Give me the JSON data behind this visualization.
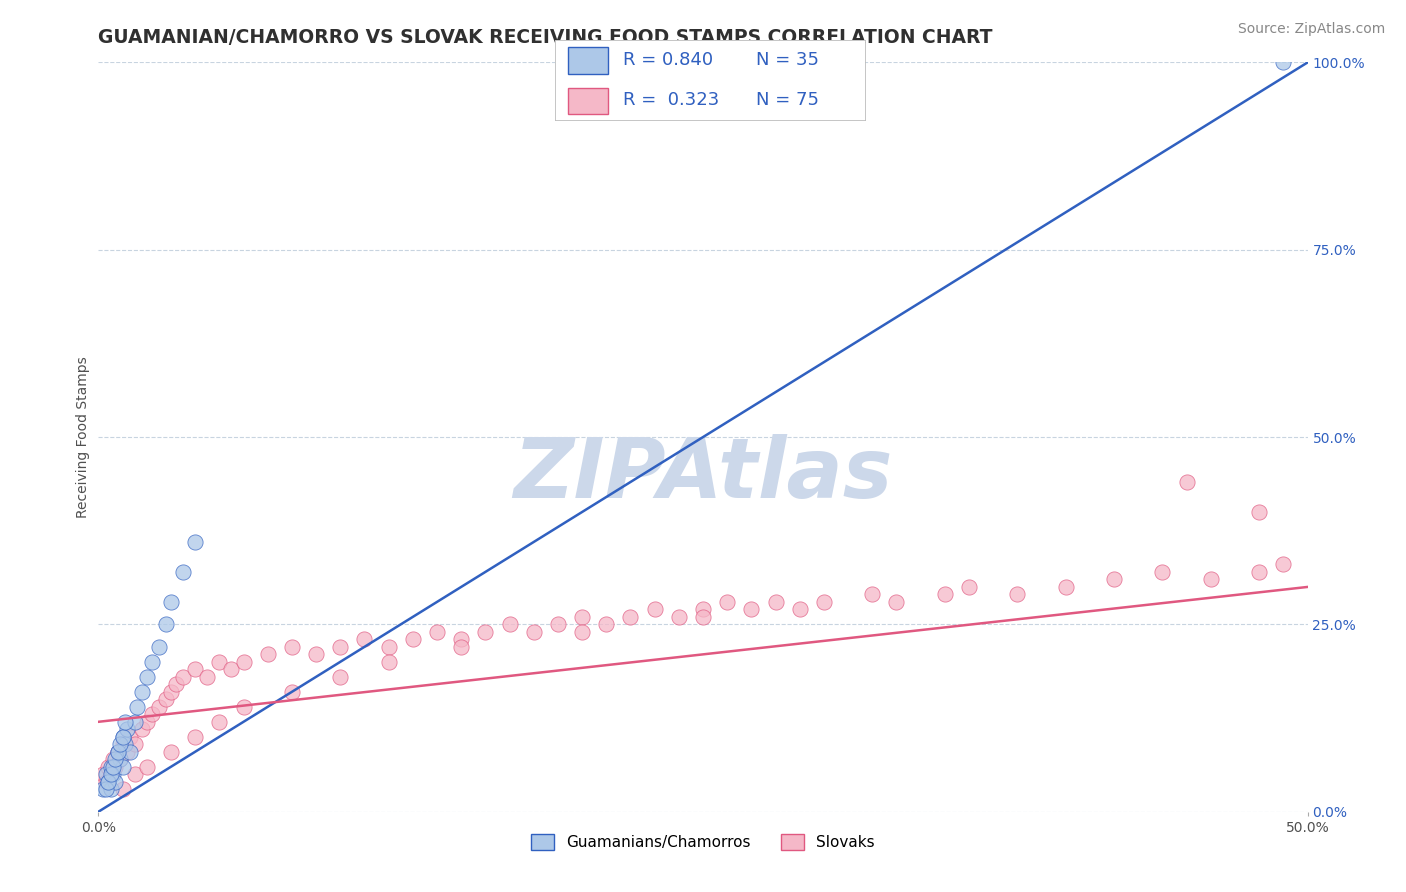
{
  "title": "GUAMANIAN/CHAMORRO VS SLOVAK RECEIVING FOOD STAMPS CORRELATION CHART",
  "source": "Source: ZipAtlas.com",
  "ylabel": "Receiving Food Stamps",
  "right_yticks": [
    "0.0%",
    "25.0%",
    "50.0%",
    "75.0%",
    "100.0%"
  ],
  "right_yvals": [
    0.0,
    25.0,
    50.0,
    75.0,
    100.0
  ],
  "series1_label": "Guamanians/Chamorros",
  "series2_label": "Slovaks",
  "color1": "#adc8e8",
  "color2": "#f5b8c8",
  "line1_color": "#3060c0",
  "line2_color": "#e05880",
  "scatter1_x": [
    0.2,
    0.3,
    0.4,
    0.5,
    0.5,
    0.6,
    0.7,
    0.8,
    0.9,
    1.0,
    1.0,
    1.1,
    1.2,
    1.3,
    1.5,
    1.6,
    1.8,
    2.0,
    2.2,
    2.5,
    2.8,
    3.0,
    3.5,
    4.0,
    0.3,
    0.4,
    0.5,
    0.6,
    0.7,
    0.8,
    0.9,
    1.0,
    1.1,
    49.0
  ],
  "scatter1_y": [
    3.0,
    5.0,
    4.0,
    3.0,
    6.0,
    5.0,
    4.0,
    8.0,
    7.0,
    6.0,
    10.0,
    9.0,
    11.0,
    8.0,
    12.0,
    14.0,
    16.0,
    18.0,
    20.0,
    22.0,
    25.0,
    28.0,
    32.0,
    36.0,
    3.0,
    4.0,
    5.0,
    6.0,
    7.0,
    8.0,
    9.0,
    10.0,
    12.0,
    100.0
  ],
  "scatter2_x": [
    0.2,
    0.3,
    0.4,
    0.5,
    0.6,
    0.7,
    0.8,
    0.9,
    1.0,
    1.2,
    1.3,
    1.5,
    1.8,
    2.0,
    2.2,
    2.5,
    2.8,
    3.0,
    3.2,
    3.5,
    4.0,
    4.5,
    5.0,
    5.5,
    6.0,
    7.0,
    8.0,
    9.0,
    10.0,
    11.0,
    12.0,
    13.0,
    14.0,
    15.0,
    16.0,
    17.0,
    18.0,
    19.0,
    20.0,
    21.0,
    22.0,
    23.0,
    24.0,
    25.0,
    26.0,
    27.0,
    28.0,
    29.0,
    30.0,
    32.0,
    33.0,
    35.0,
    36.0,
    38.0,
    40.0,
    42.0,
    44.0,
    46.0,
    48.0,
    49.0,
    1.0,
    1.5,
    2.0,
    3.0,
    4.0,
    5.0,
    6.0,
    8.0,
    10.0,
    12.0,
    15.0,
    20.0,
    25.0,
    45.0,
    48.0
  ],
  "scatter2_y": [
    5.0,
    4.0,
    6.0,
    5.0,
    7.0,
    6.0,
    8.0,
    7.0,
    9.0,
    8.0,
    10.0,
    9.0,
    11.0,
    12.0,
    13.0,
    14.0,
    15.0,
    16.0,
    17.0,
    18.0,
    19.0,
    18.0,
    20.0,
    19.0,
    20.0,
    21.0,
    22.0,
    21.0,
    22.0,
    23.0,
    22.0,
    23.0,
    24.0,
    23.0,
    24.0,
    25.0,
    24.0,
    25.0,
    26.0,
    25.0,
    26.0,
    27.0,
    26.0,
    27.0,
    28.0,
    27.0,
    28.0,
    27.0,
    28.0,
    29.0,
    28.0,
    29.0,
    30.0,
    29.0,
    30.0,
    31.0,
    32.0,
    31.0,
    32.0,
    33.0,
    3.0,
    5.0,
    6.0,
    8.0,
    10.0,
    12.0,
    14.0,
    16.0,
    18.0,
    20.0,
    22.0,
    24.0,
    26.0,
    44.0,
    40.0
  ],
  "line1_x0": 0.0,
  "line1_y0": 0.0,
  "line1_x1": 50.0,
  "line1_y1": 100.0,
  "line2_x0": 0.0,
  "line2_y0": 12.0,
  "line2_x1": 50.0,
  "line2_y1": 30.0,
  "xlim": [
    0.0,
    50.0
  ],
  "ylim": [
    0.0,
    100.0
  ],
  "watermark": "ZIPAtlas",
  "watermark_color": "#ccd8ea",
  "title_color": "#303030",
  "source_color": "#888888",
  "axis_label_color": "#505050",
  "right_tick_color": "#3060c0",
  "legend_rv_color": "#3060c0",
  "background_color": "#ffffff",
  "grid_color": "#c8d4e0",
  "title_fontsize": 13.5,
  "source_fontsize": 10,
  "axis_label_fontsize": 10,
  "tick_fontsize": 10,
  "legend_fontsize": 13,
  "watermark_fontsize": 60
}
